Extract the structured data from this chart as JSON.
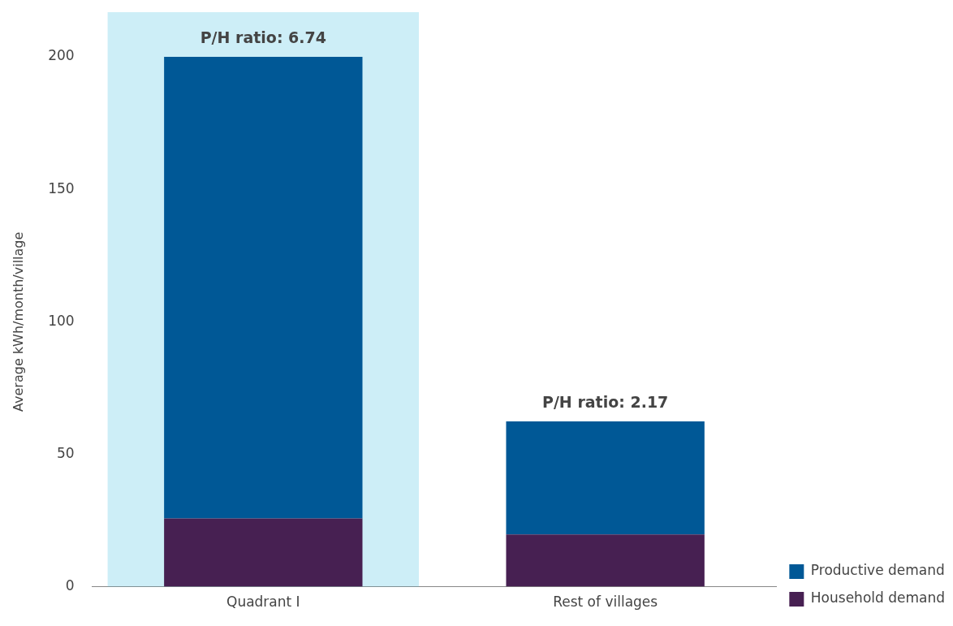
{
  "chart_data": {
    "type": "bar",
    "stacked": true,
    "ylabel": "Average kWh/month/village",
    "categories": [
      "Quadrant I",
      "Rest of villages"
    ],
    "series": [
      {
        "name": "Household demand",
        "color": "#472052",
        "values": [
          25.8,
          19.7
        ]
      },
      {
        "name": "Productive demand",
        "color": "#005896",
        "values": [
          174.2,
          42.7
        ]
      }
    ],
    "ylim": [
      0,
      200
    ],
    "yticks": [
      0,
      50,
      100,
      150,
      200
    ],
    "grid": false,
    "legend": "bottom right",
    "bands": [
      {
        "axis": "x",
        "from": "Quadrant I",
        "to": "Quadrant I",
        "color": "#5bc8e6"
      }
    ],
    "annotations": [
      {
        "text": "P/H ratio: 6.74",
        "x": "Quadrant I",
        "y": 200
      },
      {
        "text": "P/H ratio: 2.17",
        "x": "Rest of villages",
        "y": 62.4
      }
    ]
  }
}
